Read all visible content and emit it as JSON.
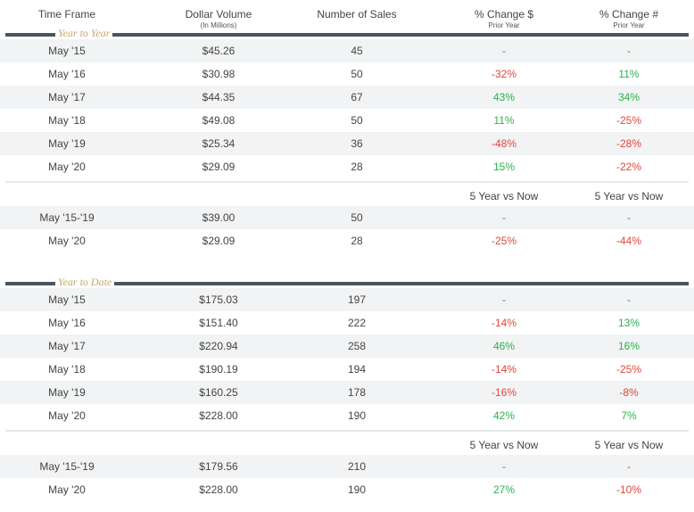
{
  "headers": {
    "time_frame": "Time Frame",
    "dollar_volume": "Dollar Volume",
    "dollar_volume_sub": "(In Millions)",
    "number_of_sales": "Number of Sales",
    "pct_change_dollar": "% Change $",
    "pct_change_dollar_sub": "Prior Year",
    "pct_change_num": "% Change #",
    "pct_change_num_sub": "Prior Year"
  },
  "sections": {
    "ytoy": "Year to Year",
    "ytd": "Year to Date"
  },
  "compare_header": "5 Year vs Now",
  "colors": {
    "negative": "#e2463a",
    "positive": "#28b34a",
    "rule": "#4b5460",
    "section_label": "#c9a46a"
  },
  "chart_data": [
    {
      "type": "table",
      "title": "Year to Year",
      "columns": [
        "Time Frame",
        "Dollar Volume",
        "Number of Sales",
        "% Change $",
        "% Change #"
      ],
      "rows": [
        [
          "May '15",
          "$45.26",
          "45",
          "-",
          "-"
        ],
        [
          "May '16",
          "$30.98",
          "50",
          "-32%",
          "11%"
        ],
        [
          "May '17",
          "$44.35",
          "67",
          "43%",
          "34%"
        ],
        [
          "May '18",
          "$49.08",
          "50",
          "11%",
          "-25%"
        ],
        [
          "May '19",
          "$25.34",
          "36",
          "-48%",
          "-28%"
        ],
        [
          "May '20",
          "$29.09",
          "28",
          "15%",
          "-22%"
        ]
      ],
      "comparison": [
        [
          "May '15-'19",
          "$39.00",
          "50",
          "-",
          "-"
        ],
        [
          "May '20",
          "$29.09",
          "28",
          "-25%",
          "-44%"
        ]
      ]
    },
    {
      "type": "table",
      "title": "Year to Date",
      "columns": [
        "Time Frame",
        "Dollar Volume",
        "Number of Sales",
        "% Change $",
        "% Change #"
      ],
      "rows": [
        [
          "May '15",
          "$175.03",
          "197",
          "-",
          "-"
        ],
        [
          "May '16",
          "$151.40",
          "222",
          "-14%",
          "13%"
        ],
        [
          "May '17",
          "$220.94",
          "258",
          "46%",
          "16%"
        ],
        [
          "May '18",
          "$190.19",
          "194",
          "-14%",
          "-25%"
        ],
        [
          "May '19",
          "$160.25",
          "178",
          "-16%",
          "-8%"
        ],
        [
          "May '20",
          "$228.00",
          "190",
          "42%",
          "7%"
        ]
      ],
      "comparison": [
        [
          "May '15-'19",
          "$179.56",
          "210",
          "-",
          "-"
        ],
        [
          "May '20",
          "$228.00",
          "190",
          "27%",
          "-10%"
        ]
      ]
    }
  ]
}
